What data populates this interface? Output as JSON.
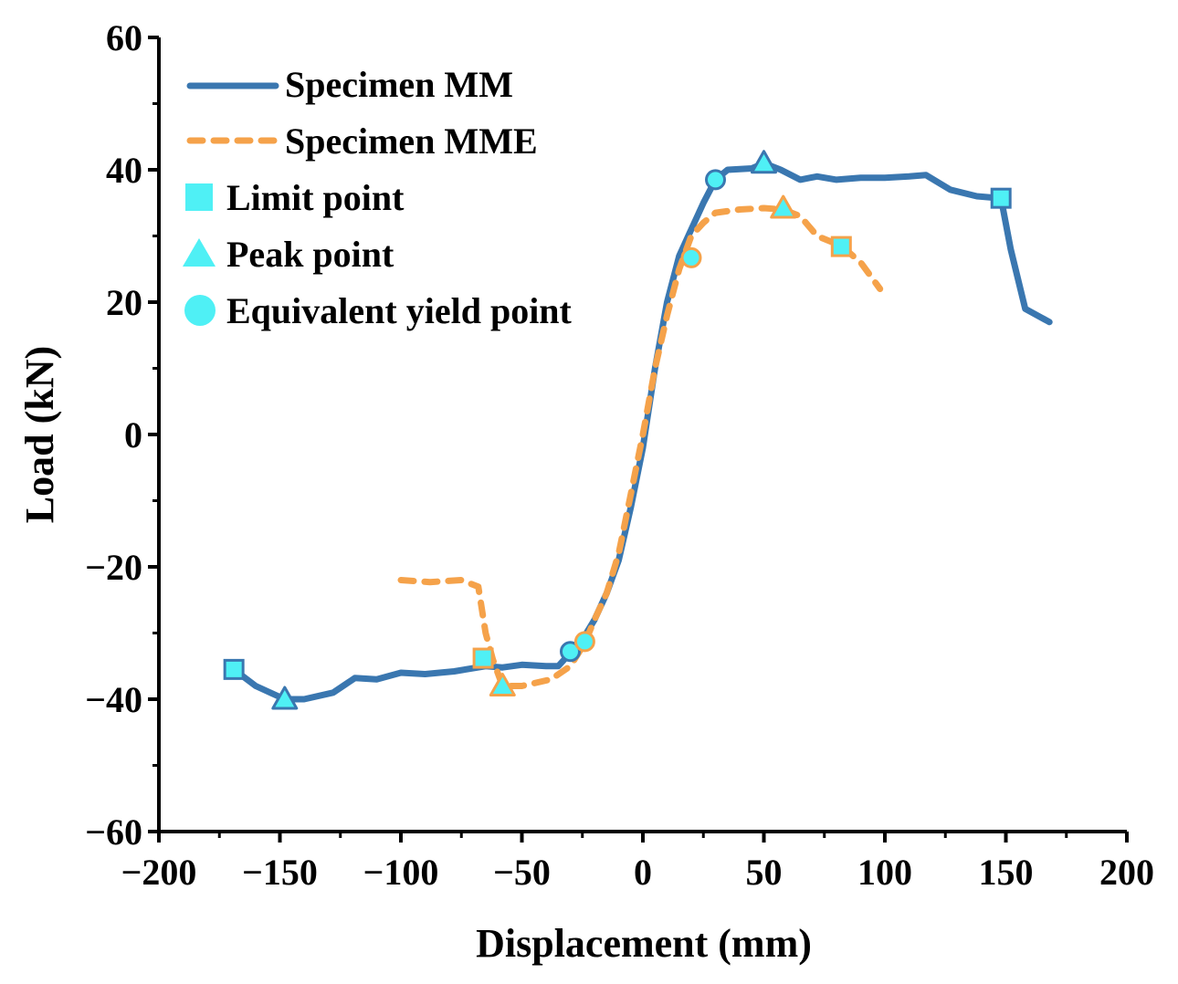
{
  "chart_data": {
    "type": "line",
    "xlabel": "Displacement (mm)",
    "ylabel": "Load (kN)",
    "xlim": [
      -200,
      200
    ],
    "ylim": [
      -60,
      60
    ],
    "xticks": [
      -200,
      -150,
      -100,
      -50,
      0,
      50,
      100,
      150,
      200
    ],
    "yticks": [
      -60,
      -40,
      -20,
      0,
      20,
      40,
      60
    ],
    "xtick_labels": [
      "−200",
      "−150",
      "−100",
      "−50",
      "0",
      "50",
      "100",
      "150",
      "200"
    ],
    "ytick_labels": [
      "−60",
      "−40",
      "−20",
      "0",
      "20",
      "40",
      "60"
    ],
    "legend_position": "top-left",
    "series": [
      {
        "name": "Specimen MM",
        "color": "#3a77b0",
        "style": "solid",
        "marker_edge": "#3a77b0",
        "points": [
          [
            -169,
            -35.5
          ],
          [
            -160,
            -38
          ],
          [
            -148,
            -40
          ],
          [
            -140,
            -40
          ],
          [
            -128,
            -39
          ],
          [
            -119,
            -36.8
          ],
          [
            -110,
            -37
          ],
          [
            -100,
            -36
          ],
          [
            -90,
            -36.2
          ],
          [
            -78,
            -35.8
          ],
          [
            -65,
            -35
          ],
          [
            -58,
            -35.2
          ],
          [
            -50,
            -34.8
          ],
          [
            -40,
            -35
          ],
          [
            -35,
            -35
          ],
          [
            -30,
            -33
          ],
          [
            -25,
            -31
          ],
          [
            -20,
            -28
          ],
          [
            -15,
            -24
          ],
          [
            -10,
            -19
          ],
          [
            -5,
            -11
          ],
          [
            0,
            -2
          ],
          [
            5,
            10
          ],
          [
            10,
            20
          ],
          [
            15,
            27
          ],
          [
            20,
            31
          ],
          [
            25,
            35
          ],
          [
            30,
            38.5
          ],
          [
            35,
            40
          ],
          [
            45,
            40.2
          ],
          [
            50,
            41
          ],
          [
            57,
            40
          ],
          [
            65,
            38.5
          ],
          [
            72,
            39
          ],
          [
            80,
            38.5
          ],
          [
            90,
            38.8
          ],
          [
            100,
            38.8
          ],
          [
            110,
            39
          ],
          [
            117,
            39.2
          ],
          [
            127,
            37
          ],
          [
            138,
            36
          ],
          [
            148,
            35.7
          ],
          [
            152,
            28
          ],
          [
            158,
            19
          ],
          [
            168,
            17
          ]
        ]
      },
      {
        "name": "Specimen MME",
        "color": "#f5a24a",
        "style": "dashed",
        "marker_edge": "#f5a24a",
        "points": [
          [
            -100,
            -22
          ],
          [
            -88,
            -22.3
          ],
          [
            -75,
            -22
          ],
          [
            -68,
            -23
          ],
          [
            -65,
            -30
          ],
          [
            -62,
            -34
          ],
          [
            -58,
            -38
          ],
          [
            -50,
            -38
          ],
          [
            -38,
            -37
          ],
          [
            -30,
            -35
          ],
          [
            -24,
            -31.5
          ],
          [
            -20,
            -28
          ],
          [
            -15,
            -24
          ],
          [
            -10,
            -18
          ],
          [
            -5,
            -9
          ],
          [
            0,
            0
          ],
          [
            5,
            10
          ],
          [
            10,
            18
          ],
          [
            15,
            25
          ],
          [
            20,
            30
          ],
          [
            25,
            32
          ],
          [
            30,
            33.5
          ],
          [
            40,
            34
          ],
          [
            50,
            34.2
          ],
          [
            58,
            34
          ],
          [
            65,
            33
          ],
          [
            72,
            30
          ],
          [
            82,
            28.5
          ],
          [
            90,
            26
          ],
          [
            98,
            22
          ]
        ]
      }
    ],
    "markers": {
      "fill": "#4ff0f5",
      "limit": [
        {
          "series": 0,
          "x": -169,
          "y": -35.5
        },
        {
          "series": 0,
          "x": 148,
          "y": 35.7
        },
        {
          "series": 1,
          "x": -66,
          "y": -33.8
        },
        {
          "series": 1,
          "x": 82,
          "y": 28.4
        }
      ],
      "peak": [
        {
          "series": 0,
          "x": -148,
          "y": -40
        },
        {
          "series": 0,
          "x": 50,
          "y": 41
        },
        {
          "series": 1,
          "x": -58,
          "y": -38
        },
        {
          "series": 1,
          "x": 58,
          "y": 34.2
        }
      ],
      "yield": [
        {
          "series": 0,
          "x": -30,
          "y": -32.8
        },
        {
          "series": 0,
          "x": 30,
          "y": 38.5
        },
        {
          "series": 1,
          "x": -24,
          "y": -31.3
        },
        {
          "series": 1,
          "x": 20,
          "y": 26.7
        }
      ]
    }
  },
  "legend": {
    "mm": "Specimen MM",
    "mme": "Specimen MME",
    "limit": "Limit point",
    "peak": "Peak point",
    "yield": "Equivalent yield point"
  }
}
